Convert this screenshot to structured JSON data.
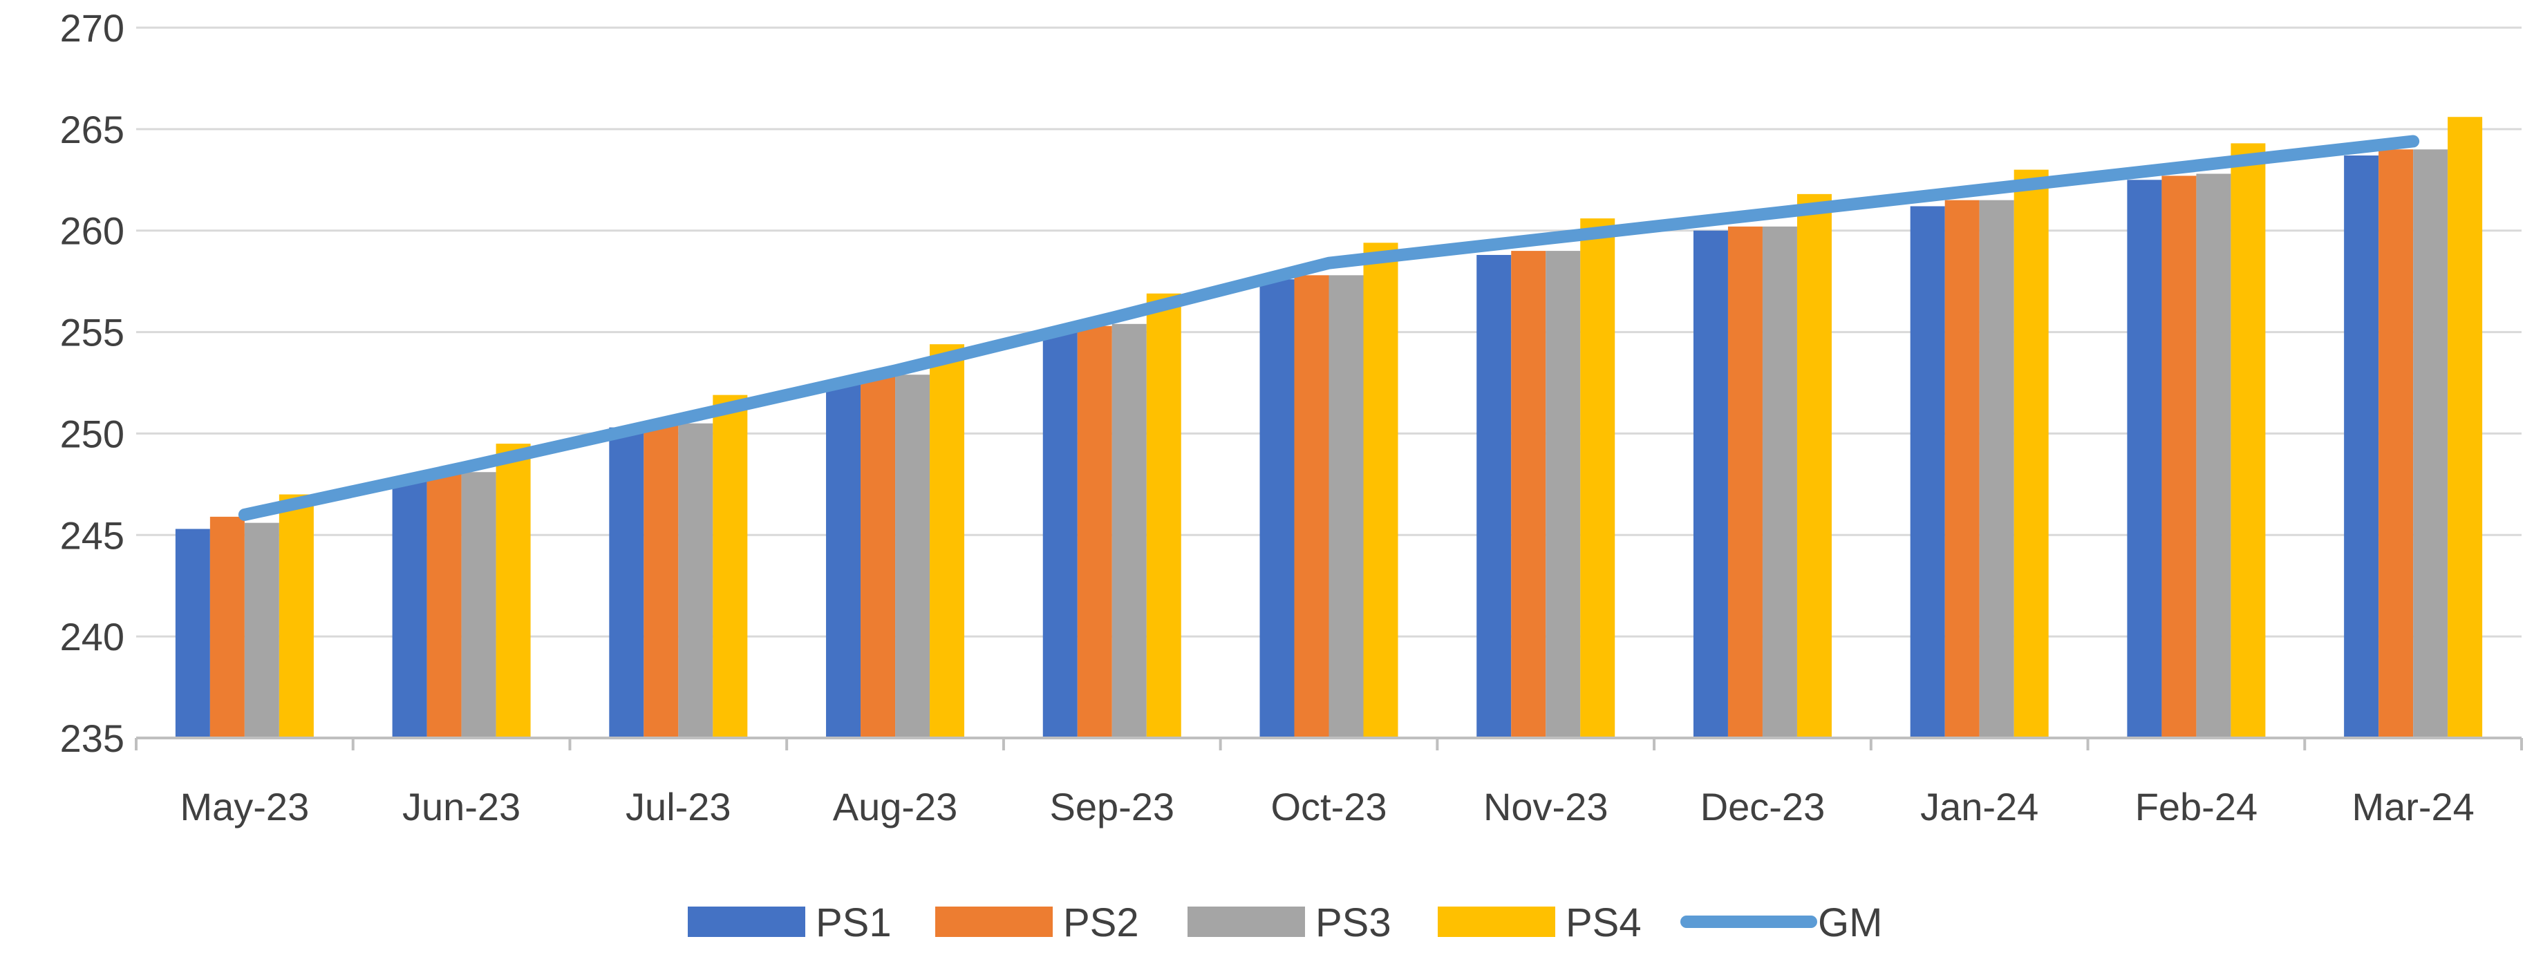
{
  "chart_data": {
    "type": "bar",
    "title": "",
    "xlabel": "",
    "ylabel": "",
    "ylim": [
      235,
      270
    ],
    "yticks": [
      235,
      240,
      245,
      250,
      255,
      260,
      265,
      270
    ],
    "grid": true,
    "legend": "bottom",
    "categories": [
      "May-23",
      "Jun-23",
      "Jul-23",
      "Aug-23",
      "Sep-23",
      "Oct-23",
      "Nov-23",
      "Dec-23",
      "Jan-24",
      "Feb-24",
      "Mar-24"
    ],
    "series": [
      {
        "name": "PS1",
        "type": "bar",
        "color": "#4472C4",
        "values": [
          245.3,
          247.7,
          250.3,
          252.6,
          255.0,
          257.6,
          258.8,
          260.0,
          261.2,
          262.5,
          263.7
        ]
      },
      {
        "name": "PS2",
        "type": "bar",
        "color": "#ED7D31",
        "values": [
          245.9,
          248.0,
          250.5,
          252.9,
          255.3,
          257.8,
          259.0,
          260.2,
          261.5,
          262.7,
          264.0
        ]
      },
      {
        "name": "PS3",
        "type": "bar",
        "color": "#A5A5A5",
        "values": [
          245.6,
          248.1,
          250.5,
          252.9,
          255.4,
          257.8,
          259.0,
          260.2,
          261.5,
          262.8,
          264.0
        ]
      },
      {
        "name": "PS4",
        "type": "bar",
        "color": "#FFC000",
        "values": [
          247.0,
          249.5,
          251.9,
          254.4,
          256.9,
          259.4,
          260.6,
          261.8,
          263.0,
          264.3,
          265.6
        ]
      },
      {
        "name": "GM",
        "type": "line",
        "color": "#5B9BD5",
        "values": [
          246.0,
          248.3,
          250.7,
          253.1,
          255.7,
          258.4,
          259.6,
          260.8,
          262.0,
          263.2,
          264.4
        ]
      }
    ]
  }
}
